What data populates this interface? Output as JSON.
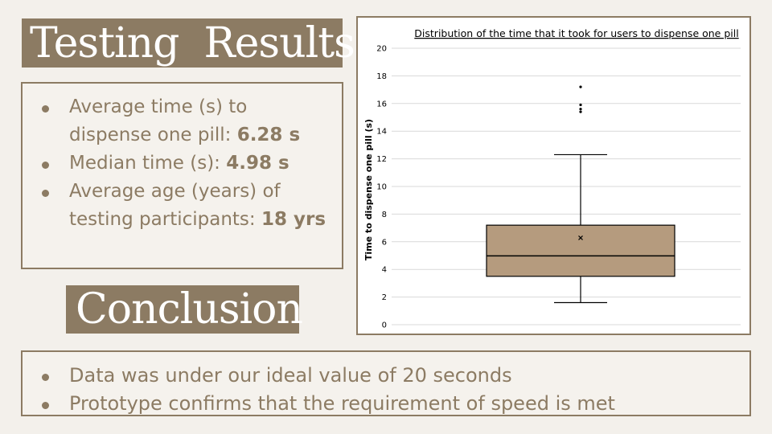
{
  "sections": {
    "results_title": "Testing  Results",
    "conclusion_title": "Conclusion"
  },
  "stats": [
    {
      "text": "Average time (s) to dispense one pill: ",
      "bold": "6.28 s"
    },
    {
      "text": "Median time (s): ",
      "bold": "4.98 s"
    },
    {
      "text": "Average age (years) of testing participants: ",
      "bold": "18 yrs"
    }
  ],
  "conclusions": [
    "Data was under our ideal value of 20 seconds",
    "Prototype confirms that the requirement of speed is met"
  ],
  "colors": {
    "accent": "#8c7b63",
    "box_fill": "#b59b7e",
    "background": "#f3f0eb"
  },
  "chart_data": {
    "type": "box",
    "title": "Distribution of the time that it took for users to dispense one pill",
    "ylabel": "Time to dispense one pill (s)",
    "xlabel": "",
    "ylim": [
      0,
      20
    ],
    "yticks": [
      0,
      2,
      4,
      6,
      8,
      10,
      12,
      14,
      16,
      18,
      20
    ],
    "grid": true,
    "box": {
      "whisker_low": 1.6,
      "q1": 3.5,
      "median": 4.98,
      "mean": 6.28,
      "q3": 7.2,
      "whisker_high": 12.3,
      "outliers": [
        15.4,
        15.6,
        15.9,
        17.2
      ]
    }
  }
}
